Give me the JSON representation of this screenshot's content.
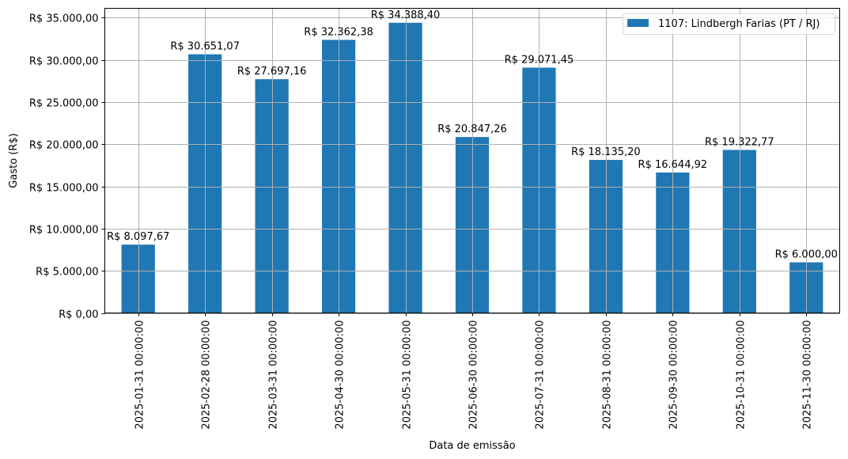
{
  "chart_data": {
    "type": "bar",
    "title": "",
    "xlabel": "Data de emissão",
    "ylabel": "Gasto (R$)",
    "ylim": [
      0,
      36100
    ],
    "grid": true,
    "legend_position": "upper right",
    "bar_color": "#1f77b4",
    "categories": [
      "2025-01-31 00:00:00",
      "2025-02-28 00:00:00",
      "2025-03-31 00:00:00",
      "2025-04-30 00:00:00",
      "2025-05-31 00:00:00",
      "2025-06-30 00:00:00",
      "2025-07-31 00:00:00",
      "2025-08-31 00:00:00",
      "2025-09-30 00:00:00",
      "2025-10-31 00:00:00",
      "2025-11-30 00:00:00"
    ],
    "series": [
      {
        "name": "1107: Lindbergh Farias (PT / RJ)",
        "values": [
          8097.67,
          30651.07,
          27697.16,
          32362.38,
          34388.4,
          20847.26,
          29071.45,
          18135.2,
          16644.92,
          19322.77,
          6000.0
        ],
        "labels": [
          "R$ 8.097,67",
          "R$ 30.651,07",
          "R$ 27.697,16",
          "R$ 32.362,38",
          "R$ 34.388,40",
          "R$ 20.847,26",
          "R$ 29.071,45",
          "R$ 18.135,20",
          "R$ 16.644,92",
          "R$ 19.322,77",
          "R$ 6.000,00"
        ]
      }
    ],
    "yticks": [
      0,
      5000,
      10000,
      15000,
      20000,
      25000,
      30000,
      35000
    ],
    "ytick_labels": [
      "R$ 0,00",
      "R$ 5.000,00",
      "R$ 10.000,00",
      "R$ 15.000,00",
      "R$ 20.000,00",
      "R$ 25.000,00",
      "R$ 30.000,00",
      "R$ 35.000,00"
    ]
  },
  "legend": {
    "label": "1107: Lindbergh Farias (PT / RJ)"
  },
  "axes": {
    "xlabel": "Data de emissão",
    "ylabel": "Gasto (R$)"
  }
}
